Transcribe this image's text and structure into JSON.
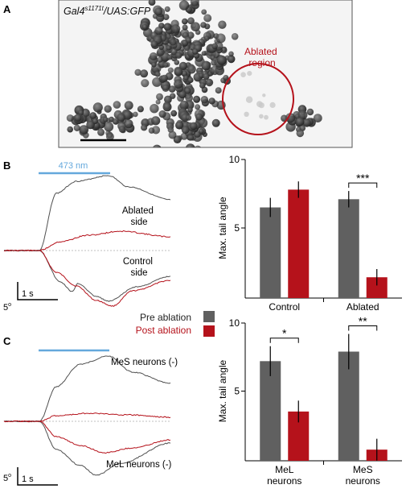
{
  "colors": {
    "pre": "#606060",
    "post": "#b5121b",
    "light": "#64a8dc",
    "ablated_circle": "#b5121b",
    "dashed": "#aaaaaa"
  },
  "panels": {
    "a": {
      "letter": "A",
      "genotype_base": "Gal4",
      "genotype_sup": "s1171t",
      "genotype_rest": "/UAS:GFP",
      "ablated_label": [
        "Ablated",
        "region"
      ]
    },
    "b": {
      "letter": "B",
      "light_label": "473 nm",
      "ablated_side": [
        "Ablated",
        "side"
      ],
      "control_side": [
        "Control",
        "side"
      ]
    },
    "c": {
      "letter": "C",
      "mes_label": "MeS neurons (-)",
      "mel_label": "MeL neurons (-)"
    }
  },
  "scalebar": {
    "deg": "5",
    "deg_unit": "o",
    "time": "1 s"
  },
  "legend": {
    "pre": "Pre ablation",
    "post": "Post ablation"
  },
  "chart_data": [
    {
      "type": "bar",
      "panel": "B",
      "ylabel": "Max. tail angle",
      "ylim": [
        0,
        10
      ],
      "yticks": [
        5,
        10
      ],
      "categories": [
        "Control",
        "Ablated"
      ],
      "series": [
        {
          "name": "Pre ablation",
          "values": [
            6.5,
            7.1
          ],
          "errors": [
            0.7,
            0.6
          ]
        },
        {
          "name": "Post ablation",
          "values": [
            7.8,
            1.4
          ],
          "errors": [
            0.6,
            0.6
          ]
        }
      ],
      "significance": [
        {
          "category": "Ablated",
          "label": "***"
        }
      ]
    },
    {
      "type": "bar",
      "panel": "C",
      "ylabel": "Max. tail angle",
      "ylim": [
        0,
        10
      ],
      "yticks": [
        5,
        10
      ],
      "categories": [
        "MeL\nneurons",
        "MeS\nneurons"
      ],
      "series": [
        {
          "name": "Pre ablation",
          "values": [
            7.2,
            7.9
          ],
          "errors": [
            1.1,
            1.3
          ]
        },
        {
          "name": "Post ablation",
          "values": [
            3.5,
            0.7
          ],
          "errors": [
            0.8,
            0.8
          ]
        }
      ],
      "significance": [
        {
          "category": "MeL\nneurons",
          "label": "*"
        },
        {
          "category": "MeS\nneurons",
          "label": "**"
        }
      ]
    }
  ]
}
